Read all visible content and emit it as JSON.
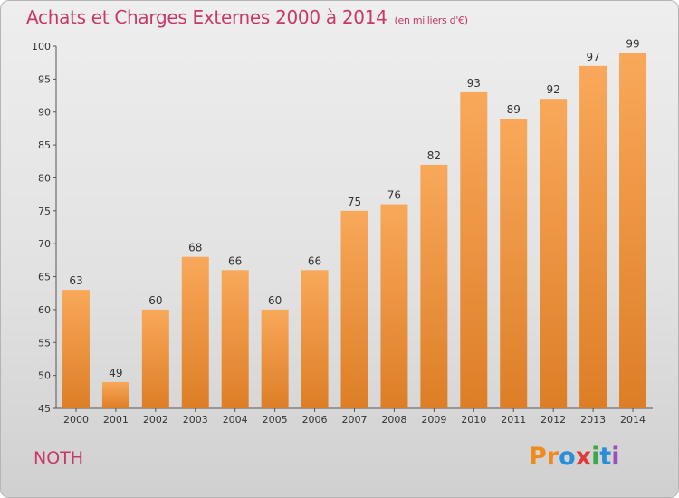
{
  "title": "Achats et Charges Externes 2000 à 2014",
  "subtitle": "(en milliers d'€)",
  "commune": "NOTH",
  "logo": {
    "letters": [
      "P",
      "r",
      "o",
      "x",
      "i",
      "t",
      "i"
    ],
    "colors": [
      "#f08a1c",
      "#f08a1c",
      "#2a8fd8",
      "#e23a3a",
      "#39a846",
      "#2a8fd8",
      "#9b4fb8"
    ]
  },
  "colors": {
    "bar_light": "#f9a85a",
    "bar_dark": "#dd7e26",
    "text_accent": "#c8386a"
  },
  "chart_data": {
    "type": "bar",
    "categories": [
      "2000",
      "2001",
      "2002",
      "2003",
      "2004",
      "2005",
      "2006",
      "2007",
      "2008",
      "2009",
      "2010",
      "2011",
      "2012",
      "2013",
      "2014"
    ],
    "values": [
      63,
      49,
      60,
      68,
      66,
      60,
      66,
      75,
      76,
      82,
      93,
      89,
      92,
      97,
      99
    ],
    "title": "Achats et Charges Externes 2000 à 2014",
    "ylim": [
      45,
      100
    ],
    "yticks": [
      45,
      50,
      55,
      60,
      65,
      70,
      75,
      80,
      85,
      90,
      95,
      100
    ],
    "grid": false,
    "legend": "none"
  }
}
